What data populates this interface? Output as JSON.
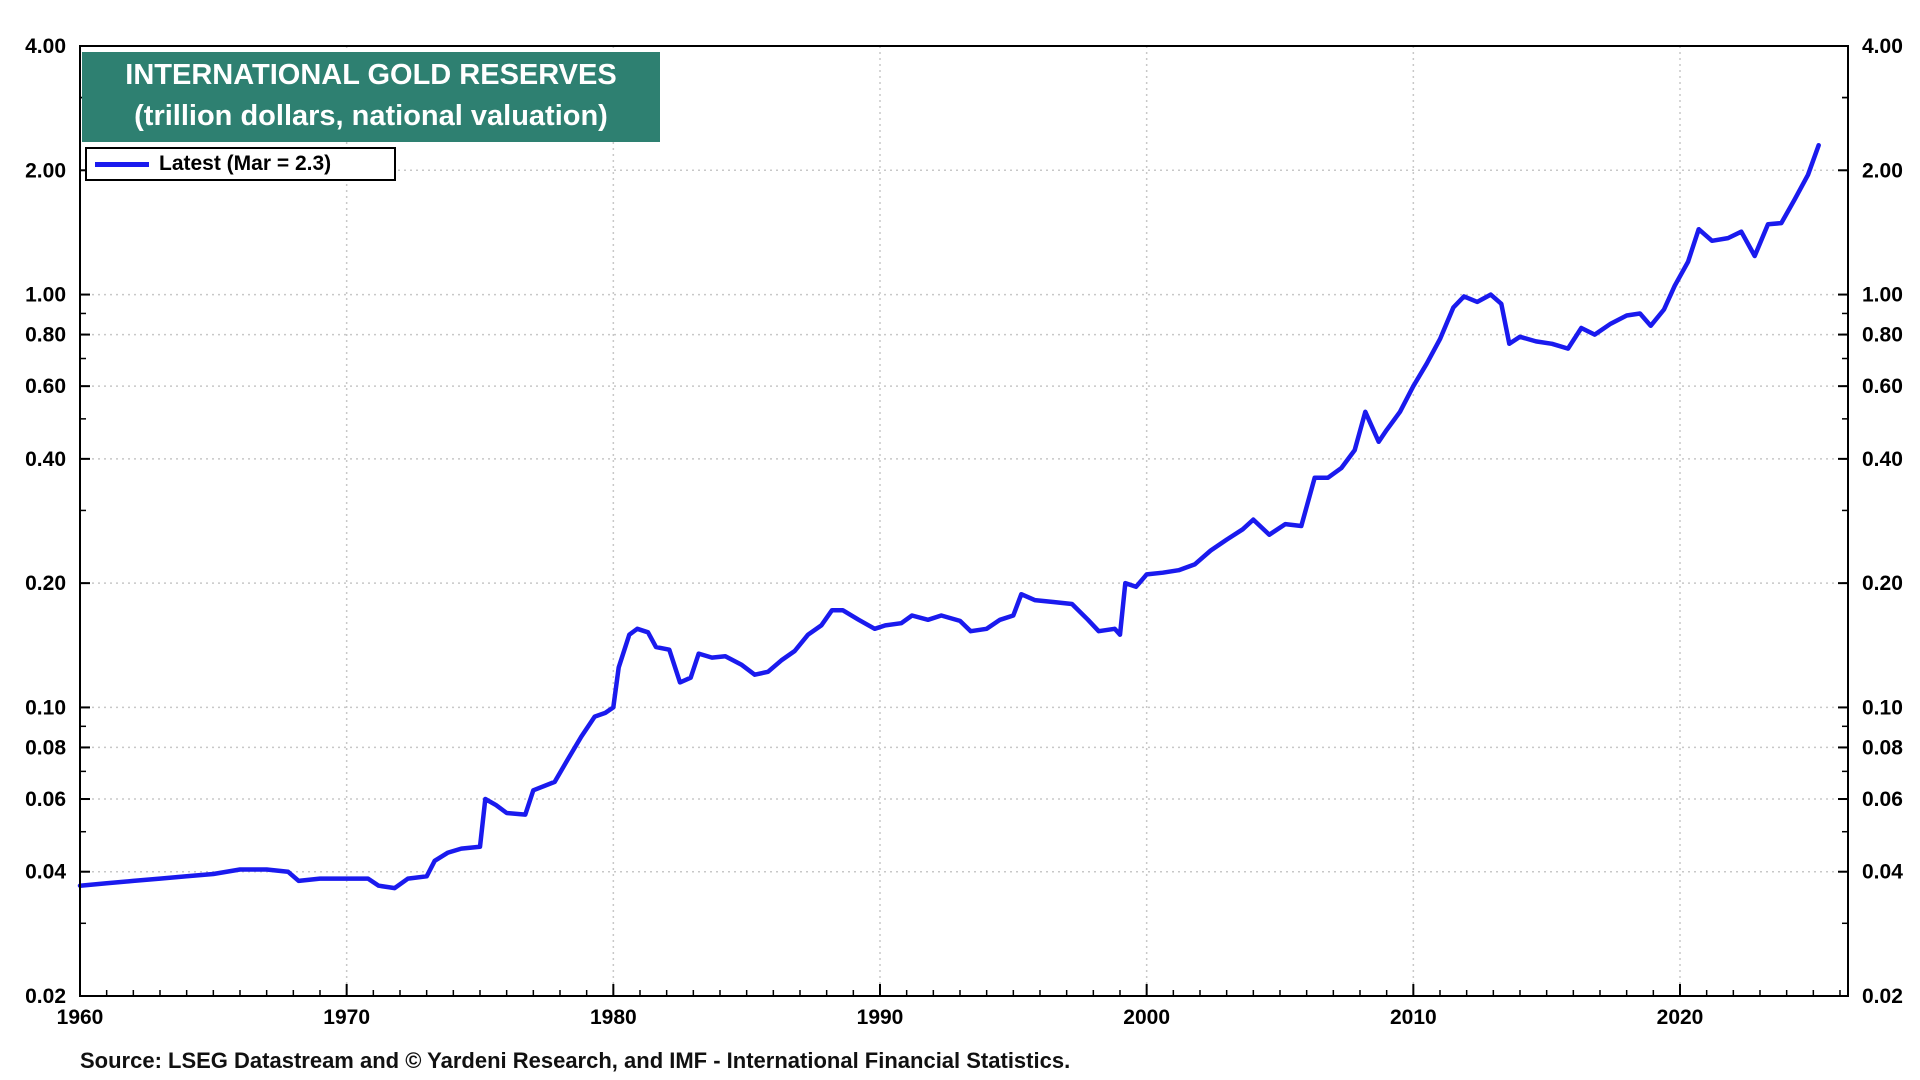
{
  "chart_data": {
    "type": "line",
    "title": "INTERNATIONAL GOLD RESERVES",
    "subtitle": "(trillion dollars, national valuation)",
    "y_scale": "log",
    "ylim": [
      0.02,
      4.0
    ],
    "xlim": [
      1960,
      2026.3
    ],
    "grid": true,
    "legend_position": "top-left",
    "y_ticks": [
      {
        "value": 0.02,
        "label": "0.02"
      },
      {
        "value": 0.04,
        "label": "0.04"
      },
      {
        "value": 0.06,
        "label": "0.06"
      },
      {
        "value": 0.08,
        "label": "0.08"
      },
      {
        "value": 0.1,
        "label": "0.10"
      },
      {
        "value": 0.2,
        "label": "0.20"
      },
      {
        "value": 0.4,
        "label": "0.40"
      },
      {
        "value": 0.6,
        "label": "0.60"
      },
      {
        "value": 0.8,
        "label": "0.80"
      },
      {
        "value": 1.0,
        "label": "1.00"
      },
      {
        "value": 2.0,
        "label": "2.00"
      },
      {
        "value": 4.0,
        "label": "4.00"
      }
    ],
    "x_ticks": [
      {
        "value": 1960,
        "label": "1960"
      },
      {
        "value": 1970,
        "label": "1970"
      },
      {
        "value": 1980,
        "label": "1980"
      },
      {
        "value": 1990,
        "label": "1990"
      },
      {
        "value": 2000,
        "label": "2000"
      },
      {
        "value": 2010,
        "label": "2010"
      },
      {
        "value": 2020,
        "label": "2020"
      }
    ],
    "series": [
      {
        "name": "Latest (Mar = 2.3)",
        "color": "#1a1aee",
        "points": [
          [
            1960.0,
            0.037
          ],
          [
            1961.0,
            0.0375
          ],
          [
            1962.0,
            0.038
          ],
          [
            1963.0,
            0.0385
          ],
          [
            1964.0,
            0.039
          ],
          [
            1965.0,
            0.0395
          ],
          [
            1966.0,
            0.0405
          ],
          [
            1967.0,
            0.0405
          ],
          [
            1967.8,
            0.04
          ],
          [
            1968.2,
            0.038
          ],
          [
            1969.0,
            0.0385
          ],
          [
            1970.0,
            0.0385
          ],
          [
            1970.8,
            0.0385
          ],
          [
            1971.2,
            0.037
          ],
          [
            1971.8,
            0.0365
          ],
          [
            1972.3,
            0.0385
          ],
          [
            1973.0,
            0.039
          ],
          [
            1973.3,
            0.0425
          ],
          [
            1973.8,
            0.0445
          ],
          [
            1974.3,
            0.0455
          ],
          [
            1975.0,
            0.046
          ],
          [
            1975.2,
            0.06
          ],
          [
            1975.6,
            0.058
          ],
          [
            1976.0,
            0.0555
          ],
          [
            1976.7,
            0.055
          ],
          [
            1977.0,
            0.063
          ],
          [
            1977.8,
            0.066
          ],
          [
            1978.3,
            0.075
          ],
          [
            1978.8,
            0.085
          ],
          [
            1979.3,
            0.095
          ],
          [
            1979.7,
            0.097
          ],
          [
            1980.0,
            0.1
          ],
          [
            1980.2,
            0.125
          ],
          [
            1980.6,
            0.15
          ],
          [
            1980.9,
            0.155
          ],
          [
            1981.3,
            0.152
          ],
          [
            1981.6,
            0.14
          ],
          [
            1982.1,
            0.138
          ],
          [
            1982.5,
            0.115
          ],
          [
            1982.9,
            0.118
          ],
          [
            1983.2,
            0.135
          ],
          [
            1983.7,
            0.132
          ],
          [
            1984.2,
            0.133
          ],
          [
            1984.8,
            0.127
          ],
          [
            1985.3,
            0.12
          ],
          [
            1985.8,
            0.122
          ],
          [
            1986.3,
            0.13
          ],
          [
            1986.8,
            0.137
          ],
          [
            1987.3,
            0.15
          ],
          [
            1987.8,
            0.158
          ],
          [
            1988.2,
            0.172
          ],
          [
            1988.6,
            0.172
          ],
          [
            1989.2,
            0.163
          ],
          [
            1989.8,
            0.155
          ],
          [
            1990.2,
            0.158
          ],
          [
            1990.8,
            0.16
          ],
          [
            1991.2,
            0.167
          ],
          [
            1991.8,
            0.163
          ],
          [
            1992.3,
            0.167
          ],
          [
            1993.0,
            0.162
          ],
          [
            1993.4,
            0.153
          ],
          [
            1994.0,
            0.155
          ],
          [
            1994.5,
            0.163
          ],
          [
            1995.0,
            0.167
          ],
          [
            1995.3,
            0.188
          ],
          [
            1995.8,
            0.182
          ],
          [
            1996.5,
            0.18
          ],
          [
            1997.2,
            0.178
          ],
          [
            1997.8,
            0.163
          ],
          [
            1998.2,
            0.153
          ],
          [
            1998.8,
            0.155
          ],
          [
            1999.0,
            0.15
          ],
          [
            1999.2,
            0.2
          ],
          [
            1999.6,
            0.196
          ],
          [
            2000.0,
            0.21
          ],
          [
            2000.6,
            0.212
          ],
          [
            2001.2,
            0.215
          ],
          [
            2001.8,
            0.222
          ],
          [
            2002.4,
            0.24
          ],
          [
            2003.0,
            0.255
          ],
          [
            2003.6,
            0.27
          ],
          [
            2004.0,
            0.285
          ],
          [
            2004.6,
            0.262
          ],
          [
            2005.2,
            0.278
          ],
          [
            2005.8,
            0.275
          ],
          [
            2006.3,
            0.36
          ],
          [
            2006.8,
            0.36
          ],
          [
            2007.3,
            0.38
          ],
          [
            2007.8,
            0.42
          ],
          [
            2008.2,
            0.52
          ],
          [
            2008.7,
            0.44
          ],
          [
            2009.0,
            0.47
          ],
          [
            2009.5,
            0.52
          ],
          [
            2010.0,
            0.6
          ],
          [
            2010.5,
            0.68
          ],
          [
            2011.0,
            0.78
          ],
          [
            2011.5,
            0.93
          ],
          [
            2011.9,
            0.99
          ],
          [
            2012.4,
            0.96
          ],
          [
            2012.9,
            1.0
          ],
          [
            2013.3,
            0.95
          ],
          [
            2013.6,
            0.76
          ],
          [
            2014.0,
            0.79
          ],
          [
            2014.6,
            0.77
          ],
          [
            2015.2,
            0.76
          ],
          [
            2015.8,
            0.74
          ],
          [
            2016.3,
            0.83
          ],
          [
            2016.8,
            0.8
          ],
          [
            2017.4,
            0.85
          ],
          [
            2018.0,
            0.89
          ],
          [
            2018.5,
            0.9
          ],
          [
            2018.9,
            0.84
          ],
          [
            2019.4,
            0.92
          ],
          [
            2019.8,
            1.05
          ],
          [
            2020.3,
            1.2
          ],
          [
            2020.7,
            1.44
          ],
          [
            2021.2,
            1.35
          ],
          [
            2021.8,
            1.37
          ],
          [
            2022.3,
            1.42
          ],
          [
            2022.8,
            1.24
          ],
          [
            2023.3,
            1.48
          ],
          [
            2023.8,
            1.49
          ],
          [
            2024.3,
            1.7
          ],
          [
            2024.8,
            1.95
          ],
          [
            2025.2,
            2.3
          ]
        ]
      }
    ]
  },
  "title_line1": "INTERNATIONAL GOLD RESERVES",
  "title_line2": "(trillion dollars, national valuation)",
  "legend_label": "Latest (Mar = 2.3)",
  "source": "Source: LSEG Datastream and © Yardeni Research, and IMF - International Financial Statistics."
}
